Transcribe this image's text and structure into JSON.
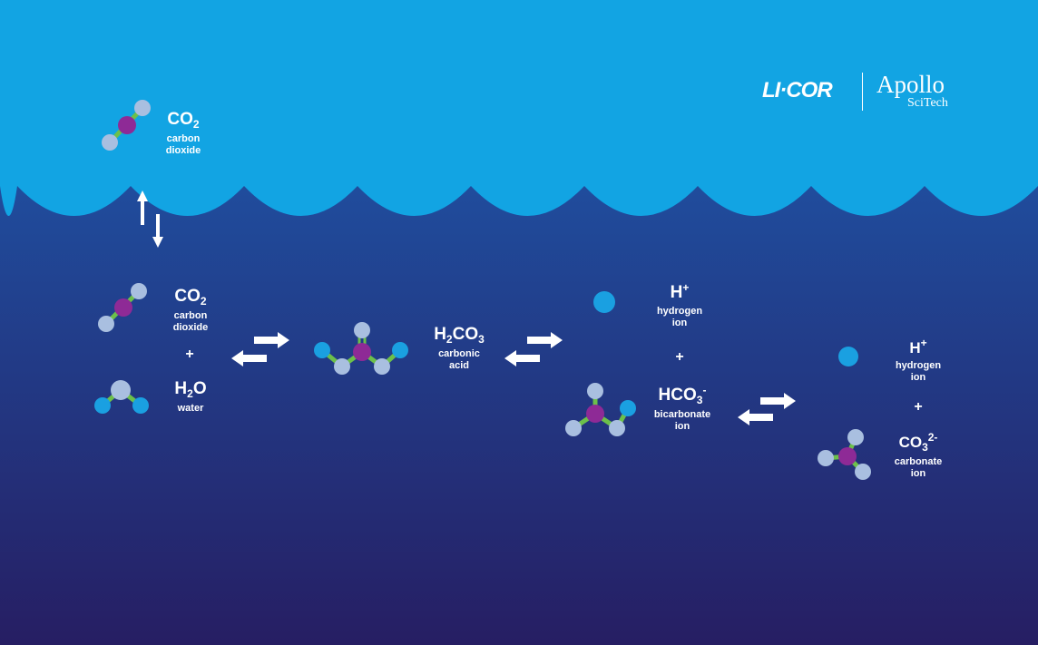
{
  "colors": {
    "sky": "#12a4e3",
    "cloud": "#35b2e9",
    "ocean_top": "#1d5fb4",
    "ocean_bottom": "#261e63",
    "carbon": "#8e2a96",
    "oxygen": "#a9bfe0",
    "hydrogen": "#1aa0e1",
    "bond": "#6cc04a",
    "text": "#ffffff"
  },
  "logos": {
    "licor": "LI·COR",
    "apollo": "Apollo",
    "scitech": "SciTech"
  },
  "atmosphere": {
    "co2": {
      "formula": "CO",
      "sub": "2",
      "name_line1": "carbon",
      "name_line2": "dioxide"
    }
  },
  "ocean": {
    "co2": {
      "formula": "CO",
      "sub": "2",
      "name_line1": "carbon",
      "name_line2": "dioxide"
    },
    "plus1": "+",
    "h2o": {
      "formula_a": "H",
      "sub": "2",
      "formula_b": "O",
      "name": "water"
    },
    "h2co3": {
      "formula_a": "H",
      "sub": "2",
      "formula_b": "CO",
      "sub2": "3",
      "name_line1": "carbonic",
      "name_line2": "acid"
    },
    "h_ion1": {
      "formula": "H",
      "sup": "+",
      "name_line1": "hydrogen",
      "name_line2": "ion"
    },
    "plus2": "+",
    "hco3": {
      "formula": "HCO",
      "sub": "3",
      "sup": "-",
      "name_line1": "bicarbonate",
      "name_line2": "ion"
    },
    "h_ion2": {
      "formula": "H",
      "sup": "+",
      "name_line1": "hydrogen",
      "name_line2": "ion"
    },
    "plus3": "+",
    "co3": {
      "formula": "CO",
      "sub": "3",
      "sup": "2-",
      "name_line1": "carbonate",
      "name_line2": "ion"
    }
  }
}
